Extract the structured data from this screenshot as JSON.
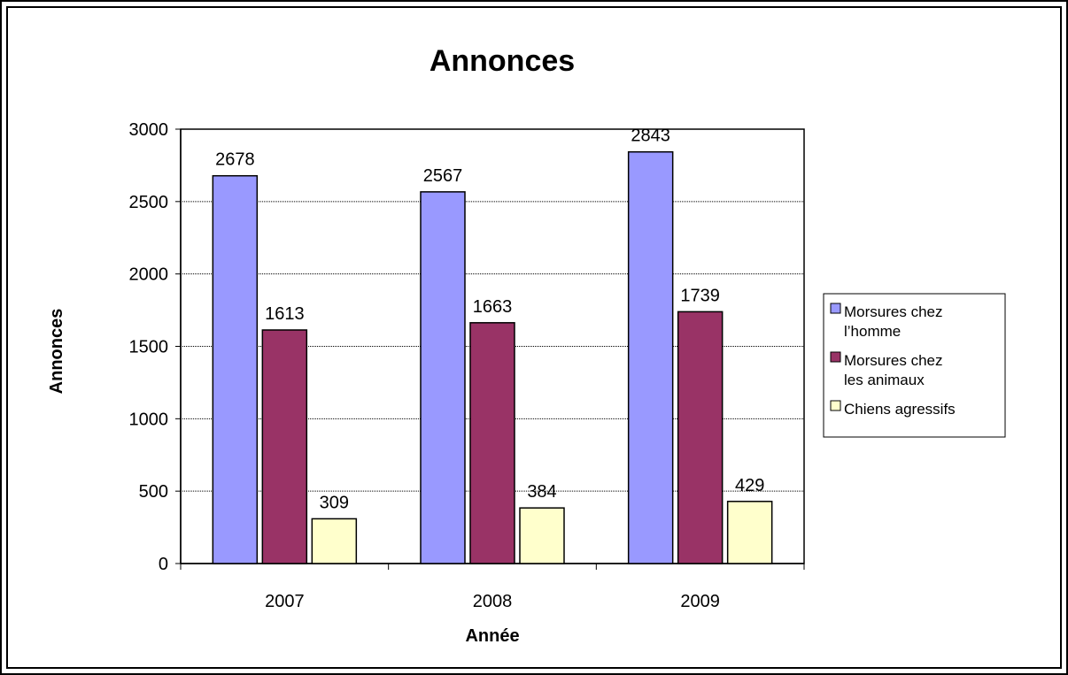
{
  "chart_data": {
    "type": "bar",
    "title": "Annonces",
    "xlabel": "Année",
    "ylabel": "Annonces",
    "categories": [
      "2007",
      "2008",
      "2009"
    ],
    "ylim": [
      0,
      3000
    ],
    "yticks": [
      0,
      500,
      1000,
      1500,
      2000,
      2500,
      3000
    ],
    "grid": true,
    "legend_position": "right",
    "series": [
      {
        "name": "Morsures chez l’homme",
        "legend_lines": [
          "Morsures chez",
          "l’homme"
        ],
        "color": "#9999ff",
        "values": [
          2678,
          2567,
          2843
        ]
      },
      {
        "name": "Morsures chez les animaux",
        "legend_lines": [
          "Morsures chez",
          "les animaux"
        ],
        "color": "#993366",
        "values": [
          1613,
          1663,
          1739
        ]
      },
      {
        "name": "Chiens agressifs",
        "legend_lines": [
          "Chiens agressifs"
        ],
        "color": "#ffffcc",
        "values": [
          309,
          384,
          429
        ]
      }
    ]
  }
}
